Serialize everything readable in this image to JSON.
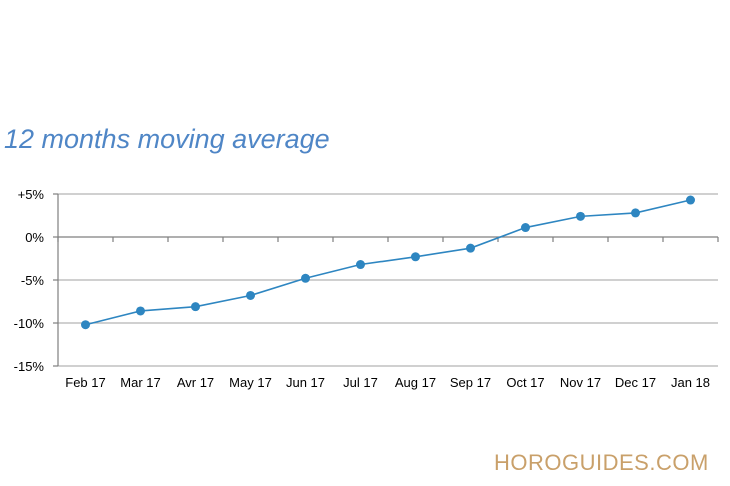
{
  "chart_data": {
    "type": "line",
    "title": "12 months moving average",
    "categories": [
      "Feb 17",
      "Mar 17",
      "Avr 17",
      "May 17",
      "Jun 17",
      "Jul 17",
      "Aug 17",
      "Sep 17",
      "Oct 17",
      "Nov 17",
      "Dec 17",
      "Jan 18"
    ],
    "values": [
      -10.2,
      -8.6,
      -8.1,
      -6.8,
      -4.8,
      -3.2,
      -2.3,
      -1.3,
      1.1,
      2.4,
      2.8,
      4.3
    ],
    "y_tick_labels": [
      "+5%",
      "0%",
      "-5%",
      "-10%",
      "-15%"
    ],
    "y_ticks": [
      5,
      0,
      -5,
      -10,
      -15
    ],
    "ylim": [
      -15,
      5
    ],
    "grid": true,
    "legend": "none",
    "series_color": "#2e86c1",
    "grid_color": "#b3b3b3"
  },
  "watermark": "HOROGUIDES.COM"
}
